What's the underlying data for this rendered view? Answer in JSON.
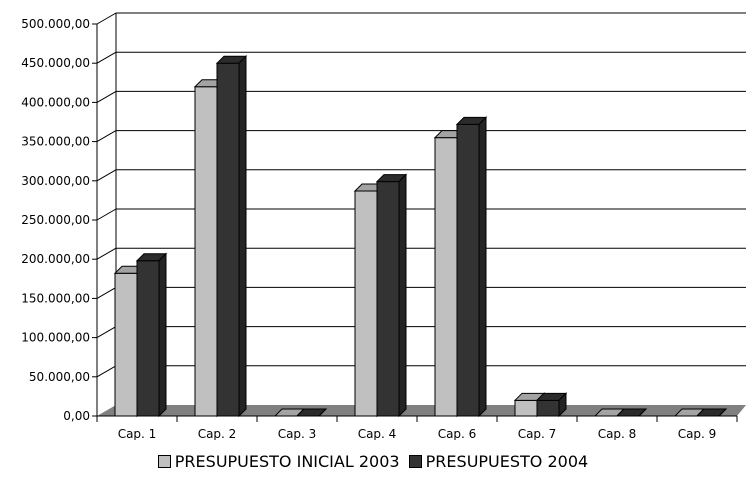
{
  "chart_data": {
    "type": "bar",
    "title": "",
    "xlabel": "",
    "ylabel": "",
    "categories": [
      "Cap. 1",
      "Cap. 2",
      "Cap. 3",
      "Cap. 4",
      "Cap. 6",
      "Cap. 7",
      "Cap. 8",
      "Cap. 9"
    ],
    "series": [
      {
        "name": "PRESUPUESTO INICIAL 2003",
        "color": "#c0c0c0",
        "values": [
          182000,
          420000,
          0,
          287000,
          355000,
          20000,
          0,
          0
        ]
      },
      {
        "name": "PRESUPUESTO 2004",
        "color": "#333333",
        "values": [
          198000,
          450000,
          0,
          299000,
          372000,
          20000,
          0,
          0
        ]
      }
    ],
    "ylim": [
      0,
      500000
    ],
    "yticks": [
      0,
      50000,
      100000,
      150000,
      200000,
      250000,
      300000,
      350000,
      400000,
      450000,
      500000
    ],
    "ytick_labels": [
      "0,00",
      "50.000,00",
      "100.000,00",
      "150.000,00",
      "200.000,00",
      "250.000,00",
      "300.000,00",
      "350.000,00",
      "400.000,00",
      "450.000,00",
      "500.000,00"
    ],
    "grid": true,
    "style": "3d-clustered",
    "legend_position": "bottom"
  }
}
